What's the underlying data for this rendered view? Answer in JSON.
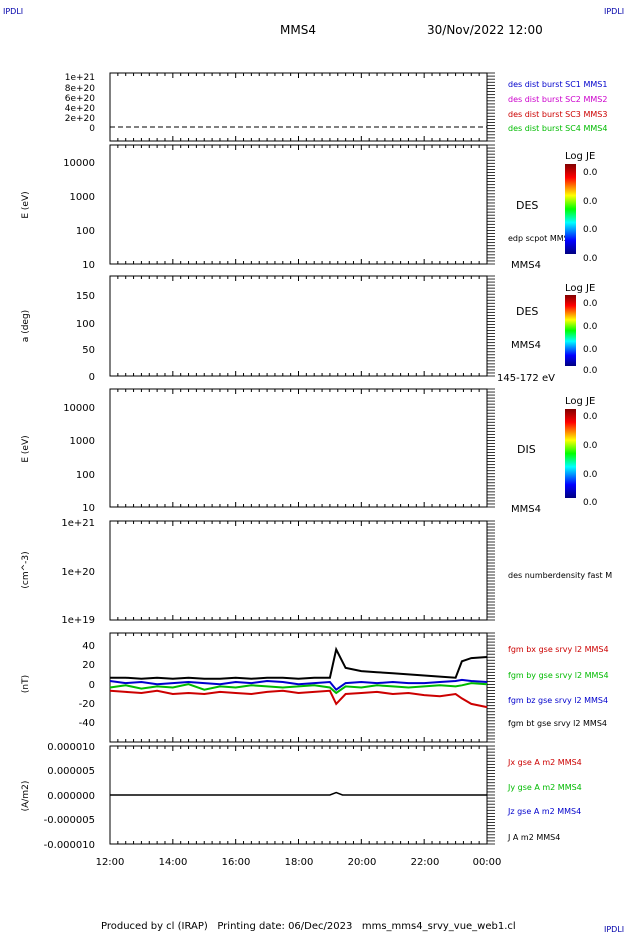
{
  "corner_labels": {
    "top_left": "IPDLI",
    "top_right": "IPDLI",
    "bottom_right": "IPDLI"
  },
  "header": {
    "spacecraft": "MMS4",
    "datetime": "30/Nov/2022 12:00"
  },
  "footer": {
    "text": "Produced by cl (IRAP)   Printing date: 06/Dec/2023   mms_mms4_srvy_vue_web1.cl"
  },
  "colors": {
    "mms1": "#0000cc",
    "mms2": "#cc00cc",
    "mms3": "#cc0000",
    "mms4": "#00bb00",
    "black": "#000000"
  },
  "panels": {
    "p1": {
      "ticks": [
        "1e+21",
        "8e+20",
        "6e+20",
        "4e+20",
        "2e+20",
        "0"
      ],
      "legend": [
        {
          "text": "des dist burst SC1 MMS1",
          "color": "#0000cc"
        },
        {
          "text": "des dist burst SC2 MMS2",
          "color": "#cc00cc"
        },
        {
          "text": "des dist burst SC3 MMS3",
          "color": "#cc0000"
        },
        {
          "text": "des dist burst SC4 MMS4",
          "color": "#00bb00"
        }
      ]
    },
    "p2": {
      "ylabel": "E (eV)",
      "ticks": [
        "10000",
        "1000",
        "100",
        "10"
      ],
      "cbar_title": "Log JE",
      "cbar_ticks": [
        "0.0",
        "0.0",
        "0.0",
        "0.0"
      ],
      "label1": "DES",
      "label2": "edp scpot MMS4",
      "label3": "MMS4"
    },
    "p3": {
      "ylabel": "a (deg)",
      "ticks": [
        "150",
        "100",
        "50",
        "0"
      ],
      "cbar_title": "Log JE",
      "cbar_ticks": [
        "0.0",
        "0.0",
        "0.0",
        "0.0"
      ],
      "label1": "DES",
      "label2": "MMS4",
      "label3": "145-172 eV"
    },
    "p4": {
      "ylabel": "E (eV)",
      "ticks": [
        "10000",
        "1000",
        "100",
        "10"
      ],
      "cbar_title": "Log JE",
      "cbar_ticks": [
        "0.0",
        "0.0",
        "0.0",
        "0.0"
      ],
      "label1": "DIS",
      "label2": "MMS4"
    },
    "p5": {
      "ylabel": "(cm^-3)",
      "ticks": [
        "1e+21",
        "1e+20",
        "1e+19"
      ],
      "label1": "des numberdensity fast M"
    },
    "p6": {
      "ylabel": "(nT)",
      "ticks": [
        "40",
        "20",
        "0",
        "-20",
        "-40"
      ],
      "legend": [
        {
          "text": "fgm bx gse srvy l2 MMS4",
          "color": "#cc0000"
        },
        {
          "text": "fgm by gse srvy l2 MMS4",
          "color": "#00bb00"
        },
        {
          "text": "fgm bz gse srvy l2 MMS4",
          "color": "#0000cc"
        },
        {
          "text": "fgm bt gse srvy l2 MMS4",
          "color": "#000000"
        }
      ]
    },
    "p7": {
      "ylabel": "(A/m2)",
      "ticks": [
        "0.000010",
        "0.000005",
        "0.000000",
        "-0.000005",
        "-0.000010"
      ],
      "legend": [
        {
          "text": "Jx gse A m2 MMS4",
          "color": "#cc0000"
        },
        {
          "text": "Jy gse A m2 MMS4",
          "color": "#00bb00"
        },
        {
          "text": "Jz gse A m2 MMS4",
          "color": "#0000cc"
        },
        {
          "text": "J A m2 MMS4",
          "color": "#000000"
        }
      ]
    }
  },
  "xaxis": {
    "ticks": [
      "12:00",
      "14:00",
      "16:00",
      "18:00",
      "20:00",
      "22:00",
      "00:00"
    ]
  },
  "chart_data": [
    {
      "type": "line",
      "title": "",
      "ylim": [
        0,
        1e+21
      ],
      "x": [
        12,
        24
      ],
      "series": [
        {
          "name": "des dist burst SC4 MMS4",
          "values": [
            0,
            0
          ]
        }
      ]
    },
    {
      "type": "heatmap",
      "ylabel": "E (eV)",
      "ylim": [
        10,
        20000
      ],
      "scale": "log"
    },
    {
      "type": "heatmap",
      "ylabel": "a (deg)",
      "ylim": [
        0,
        180
      ]
    },
    {
      "type": "heatmap",
      "ylabel": "E (eV)",
      "ylim": [
        10,
        20000
      ],
      "scale": "log"
    },
    {
      "type": "line",
      "ylabel": "(cm^-3)",
      "ylim": [
        1e+19,
        1e+21
      ],
      "scale": "log",
      "series": []
    },
    {
      "type": "line",
      "ylabel": "(nT)",
      "ylim": [
        -50,
        50
      ],
      "x": [
        12,
        12.5,
        13,
        13.5,
        14,
        14.5,
        15,
        15.5,
        16,
        16.5,
        17,
        17.5,
        18,
        18.5,
        19,
        19.2,
        19.5,
        20,
        20.5,
        21,
        21.5,
        22,
        22.5,
        23,
        23.2,
        23.5,
        24
      ],
      "series": [
        {
          "name": "fgm bx gse srvy l2 MMS4",
          "color": "#cc0000",
          "values": [
            -3,
            -4,
            -5,
            -3,
            -6,
            -5,
            -6,
            -4,
            -5,
            -6,
            -4,
            -3,
            -5,
            -4,
            -3,
            -15,
            -6,
            -5,
            -4,
            -6,
            -5,
            -7,
            -8,
            -6,
            -10,
            -15,
            -18
          ]
        },
        {
          "name": "fgm by gse srvy l2 MMS4",
          "color": "#00bb00",
          "values": [
            0,
            2,
            -1,
            1,
            0,
            3,
            -2,
            1,
            0,
            2,
            1,
            0,
            1,
            2,
            0,
            -5,
            1,
            0,
            2,
            1,
            0,
            1,
            2,
            1,
            2,
            4,
            3
          ]
        },
        {
          "name": "fgm bz gse srvy l2 MMS4",
          "color": "#0000cc",
          "values": [
            6,
            4,
            5,
            3,
            4,
            5,
            4,
            3,
            5,
            4,
            6,
            5,
            3,
            4,
            5,
            -2,
            4,
            5,
            4,
            5,
            4,
            4,
            5,
            6,
            7,
            6,
            5
          ]
        },
        {
          "name": "fgm bt gse srvy l2 MMS4",
          "color": "#000000",
          "values": [
            9,
            9,
            8,
            9,
            8,
            9,
            8,
            8,
            9,
            8,
            9,
            9,
            8,
            9,
            9,
            35,
            18,
            15,
            14,
            13,
            12,
            11,
            10,
            9,
            24,
            27,
            28
          ]
        }
      ]
    },
    {
      "type": "line",
      "ylabel": "(A/m2)",
      "ylim": [
        -1e-05,
        1e-05
      ],
      "x": [
        12,
        14,
        16,
        18,
        19,
        19.2,
        19.4,
        20,
        22,
        23.5,
        24
      ],
      "series": [
        {
          "name": "J A m2 MMS4",
          "color": "#000000",
          "values": [
            0,
            0,
            0,
            0,
            0,
            5e-07,
            0,
            0,
            0,
            0,
            0
          ]
        }
      ]
    }
  ]
}
